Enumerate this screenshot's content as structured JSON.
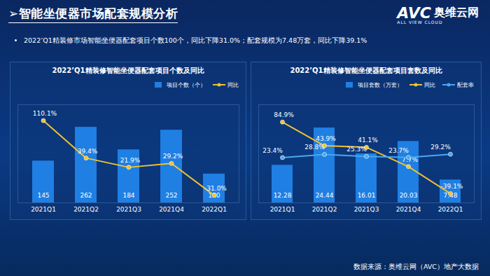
{
  "header": {
    "title": "➢智能坐便器市场配套规模分析",
    "summary": "2022’Q1精装修市场智能坐便器配套项目个数100个，同比下降31.0%；配套规模为7.48万套，同比下降39.1%",
    "logo": {
      "mark": "AVC",
      "name": "奥维云网",
      "tagline": "ALL VIEW CLOUD"
    }
  },
  "chart_data": [
    {
      "type": "bar",
      "title": "2022’Q1精装修智能坐便器配套项目个数及同比",
      "categories": [
        "2021Q1",
        "2021Q2",
        "2021Q3",
        "2021Q4",
        "2022Q1"
      ],
      "series": [
        {
          "name": "项目个数（个）",
          "type": "bar",
          "color": "#1f7fe3",
          "values": [
            145,
            262,
            184,
            252,
            100
          ]
        },
        {
          "name": "同比",
          "type": "line",
          "axis": "y2",
          "color": "#f2c12e",
          "marker": "circle",
          "line_style": "solid",
          "values": [
            110.1,
            39.4,
            21.9,
            29.2,
            -31.0
          ],
          "value_labels": [
            "110.1%",
            "39.4%",
            "21.9%",
            "29.2%",
            "-31.0%"
          ]
        }
      ],
      "ylim": [
        0,
        340
      ],
      "yticks": [],
      "y2lim": [
        -45,
        140
      ],
      "y2ticks": [],
      "grid": false,
      "data_labels": true,
      "tick_labels": "x",
      "legend": "top-right"
    },
    {
      "type": "bar",
      "title": "2022’Q1精装修智能坐便器配套项目套数及同比",
      "categories": [
        "2021Q1",
        "2021Q2",
        "2021Q3",
        "2021Q4",
        "2022Q1"
      ],
      "series": [
        {
          "name": "项目套数（万套）",
          "type": "bar",
          "color": "#1f7fe3",
          "values": [
            12.28,
            24.44,
            16.01,
            20.03,
            7.48
          ]
        },
        {
          "name": "同比",
          "type": "line",
          "axis": "y2",
          "color": "#f2c12e",
          "marker": "circle",
          "line_style": "solid",
          "values": [
            84.9,
            43.9,
            41.1,
            7.7,
            -39.1
          ],
          "value_labels": [
            "84.9%",
            "43.9%",
            "41.1%",
            "7.7%",
            "-39.1%"
          ]
        },
        {
          "name": "配套率",
          "type": "line",
          "axis": "y2",
          "color": "#4aa8ec",
          "marker": "circle",
          "line_style": "solid",
          "values": [
            23.4,
            28.8,
            25.3,
            23.7,
            29.2
          ],
          "value_labels": [
            "23.4%",
            "28.8%",
            "25.3%",
            "23.7%",
            "29.2%"
          ]
        }
      ],
      "ylim": [
        0,
        32
      ],
      "yticks": [],
      "y2lim": [
        -55,
        115
      ],
      "y2ticks": [],
      "grid": false,
      "data_labels": true,
      "tick_labels": "x",
      "legend": "top-right"
    }
  ],
  "source": "数据来源：奥维云网（AVC）地产大数据"
}
